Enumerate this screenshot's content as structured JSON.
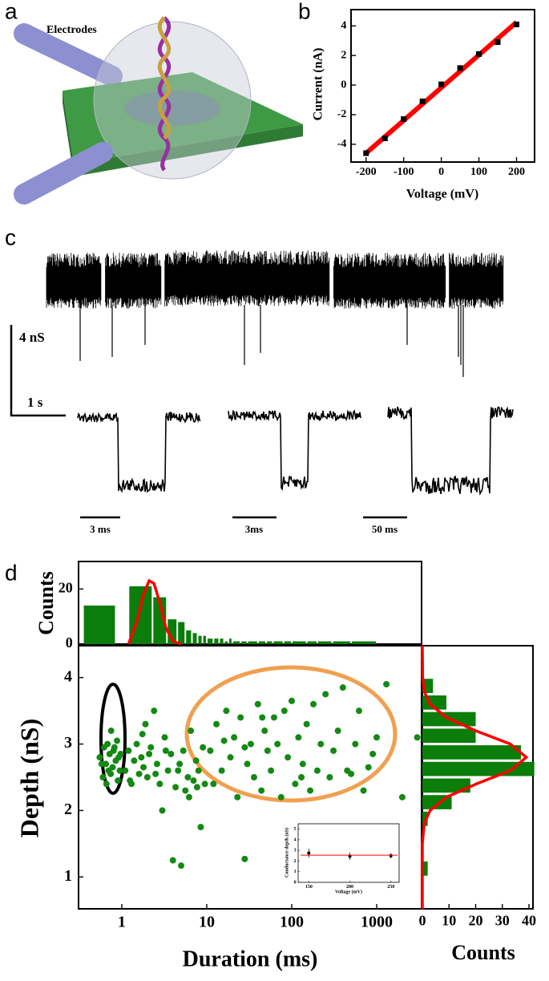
{
  "figure": {
    "panel_labels": [
      "a",
      "b",
      "c",
      "d"
    ],
    "electrodes_label": "Electrodes",
    "scale_bars": {
      "conductance": "4 nS",
      "time": "1 s",
      "event_times": [
        "3 ms",
        "3ms",
        "50 ms"
      ]
    }
  },
  "chart_data": [
    {
      "type": "scatter",
      "x_label": "Voltage (mV)",
      "y_label": "Current (nA)",
      "x": [
        -200,
        -150,
        -100,
        -50,
        0,
        50,
        100,
        150,
        200
      ],
      "series": [
        {
          "color": "#000000",
          "values": [
            -4.6,
            -3.6,
            -2.3,
            -1.1,
            0.05,
            1.15,
            2.1,
            2.9,
            4.1
          ]
        }
      ],
      "fit": {
        "color": "#ff0000",
        "x": [
          -200,
          200
        ],
        "values": [
          -4.6,
          4.25
        ]
      },
      "xlim": [
        -240,
        248
      ],
      "ylim": [
        -5.2,
        5.1
      ],
      "xticks": [
        -200,
        -100,
        0,
        100,
        200
      ],
      "yticks": [
        -4,
        -2,
        0,
        2,
        4
      ]
    },
    {
      "type": "histogram",
      "orientation": "vertical",
      "log_x": true,
      "y_label": "Counts",
      "color": "#0a7d0a",
      "bins": [
        0.35,
        0.85,
        1.2,
        2.3,
        3.4,
        4.5,
        5.6,
        6.7,
        7.8,
        8.9,
        10,
        12,
        14,
        16,
        18,
        20,
        25,
        30,
        40,
        50,
        60,
        80,
        100,
        150,
        200,
        300,
        500,
        1000
      ],
      "counts": [
        14,
        0,
        21,
        17,
        9,
        8,
        5,
        4,
        3,
        3,
        2,
        2,
        2,
        1,
        2,
        1,
        1,
        1,
        1,
        1,
        1,
        1,
        1,
        1,
        1,
        1,
        1
      ],
      "fit": {
        "color": "#ff0000",
        "x": [
          1.2,
          1.5,
          1.8,
          2.1,
          2.4,
          2.8,
          3.3,
          4,
          5
        ],
        "values": [
          0,
          8,
          18,
          23,
          22,
          15,
          6,
          1,
          0
        ]
      },
      "xlim": [
        0.31,
        3375
      ],
      "ylim": [
        0,
        30
      ],
      "yticks": [
        0,
        20
      ]
    },
    {
      "type": "scatter",
      "log_x": true,
      "x_label": "Duration (ms)",
      "y_label": "Depth (nS)",
      "x": [
        0.55,
        0.6,
        0.62,
        0.65,
        0.68,
        0.7,
        0.72,
        0.75,
        0.78,
        0.8,
        0.85,
        0.88,
        0.9,
        0.92,
        0.95,
        0.58,
        0.66,
        0.74,
        0.82,
        0.97,
        1.1,
        1.2,
        1.3,
        1.4,
        1.5,
        1.6,
        1.7,
        1.8,
        1.9,
        2.0,
        2.2,
        2.4,
        2.6,
        2.8,
        3.0,
        3.2,
        3.5,
        3.8,
        4.0,
        4.3,
        4.6,
        5.0,
        5.3,
        5.6,
        6.0,
        6.5,
        7.0,
        7.5,
        8.0,
        8.5,
        9.0,
        9.5,
        2.1,
        2.5,
        3.3,
        4.8,
        6.2,
        7.7,
        1.25,
        1.75,
        11,
        12,
        13,
        15,
        17,
        19,
        21,
        23,
        25,
        28,
        30,
        33,
        36,
        40,
        44,
        48,
        52,
        57,
        62,
        68,
        75,
        82,
        90,
        100,
        110,
        120,
        135,
        150,
        165,
        180,
        200,
        220,
        250,
        280,
        310,
        350,
        400,
        450,
        500,
        560,
        620,
        700,
        800,
        900,
        1000,
        1300,
        2000,
        3000,
        28,
        16,
        45,
        130
      ],
      "series": [
        {
          "color": "#138a13",
          "values": [
            2.8,
            2.5,
            2.95,
            2.7,
            3.0,
            2.6,
            2.85,
            3.2,
            2.65,
            2.9,
            2.75,
            3.05,
            2.45,
            2.8,
            2.6,
            2.7,
            2.4,
            2.55,
            2.95,
            2.85,
            2.6,
            2.9,
            2.4,
            2.75,
            3.0,
            2.55,
            2.8,
            2.65,
            3.3,
            2.5,
            2.95,
            3.5,
            2.7,
            2.4,
            2.0,
            3.1,
            2.6,
            2.85,
            1.25,
            2.35,
            2.6,
            1.17,
            2.9,
            2.3,
            2.5,
            3.2,
            2.45,
            2.75,
            2.6,
            1.75,
            2.95,
            2.4,
            2.85,
            2.55,
            2.9,
            2.7,
            2.2,
            2.35,
            2.45,
            3.15,
            2.9,
            2.4,
            3.3,
            2.6,
            3.5,
            2.8,
            3.1,
            2.2,
            3.4,
            1.27,
            2.7,
            3.0,
            2.5,
            3.6,
            2.3,
            3.2,
            2.9,
            2.6,
            3.4,
            3.0,
            2.2,
            3.5,
            2.8,
            3.65,
            2.4,
            3.1,
            2.7,
            3.3,
            2.3,
            3.6,
            2.6,
            3.0,
            3.75,
            2.5,
            2.9,
            3.2,
            3.85,
            2.6,
            2.55,
            3.0,
            3.5,
            2.3,
            2.65,
            2.85,
            3.1,
            3.9,
            2.2,
            3.1,
            2.95,
            3.05,
            3.4,
            2.5
          ]
        }
      ],
      "xlim": [
        0.31,
        3375
      ],
      "ylim": [
        0.52,
        4.48
      ],
      "xticks": [
        1,
        10,
        100,
        1000
      ],
      "yticks": [
        1,
        2,
        3,
        4
      ]
    },
    {
      "type": "histogram",
      "orientation": "horizontal",
      "x_label": "Counts",
      "color": "#0a7d0a",
      "bins": [
        1.0,
        1.25,
        1.5,
        1.75,
        2.0,
        2.25,
        2.5,
        2.75,
        3.0,
        3.25,
        3.5,
        3.75,
        4.0
      ],
      "counts": [
        2,
        0,
        0,
        2,
        11,
        18,
        42,
        37,
        20,
        20,
        9,
        4
      ],
      "fit": {
        "color": "#ff0000",
        "x": [
          0.52,
          1.5,
          1.8,
          2.0,
          2.2,
          2.4,
          2.6,
          2.8,
          3.0,
          3.2,
          3.4,
          3.6,
          3.8,
          4.0,
          4.48
        ],
        "values": [
          0,
          0,
          0.7,
          2.9,
          9,
          20.3,
          33,
          39,
          33,
          20,
          9,
          2.9,
          0.6,
          0.1,
          0
        ]
      },
      "xlim": [
        0,
        41.5
      ],
      "ylim": [
        0.52,
        4.48
      ],
      "xticks": [
        0,
        10,
        20,
        30,
        40
      ]
    },
    {
      "type": "scatter",
      "x_label": "Voltage (mV)",
      "y_label": "Conductance depth (nS)",
      "x": [
        150,
        200,
        250
      ],
      "series": [
        {
          "color": "#000000",
          "values": [
            2.75,
            2.45,
            2.5
          ],
          "errors": [
            0.4,
            0.35,
            0.25
          ]
        }
      ],
      "fit": {
        "color": "#ff0000",
        "x": [
          140,
          258
        ],
        "values": [
          2.55,
          2.55
        ]
      },
      "xlim": [
        137,
        260
      ],
      "ylim": [
        0,
        5.5
      ],
      "xticks": [
        150,
        200,
        250
      ],
      "yticks": [
        0,
        1,
        2,
        3,
        4,
        5
      ]
    }
  ]
}
